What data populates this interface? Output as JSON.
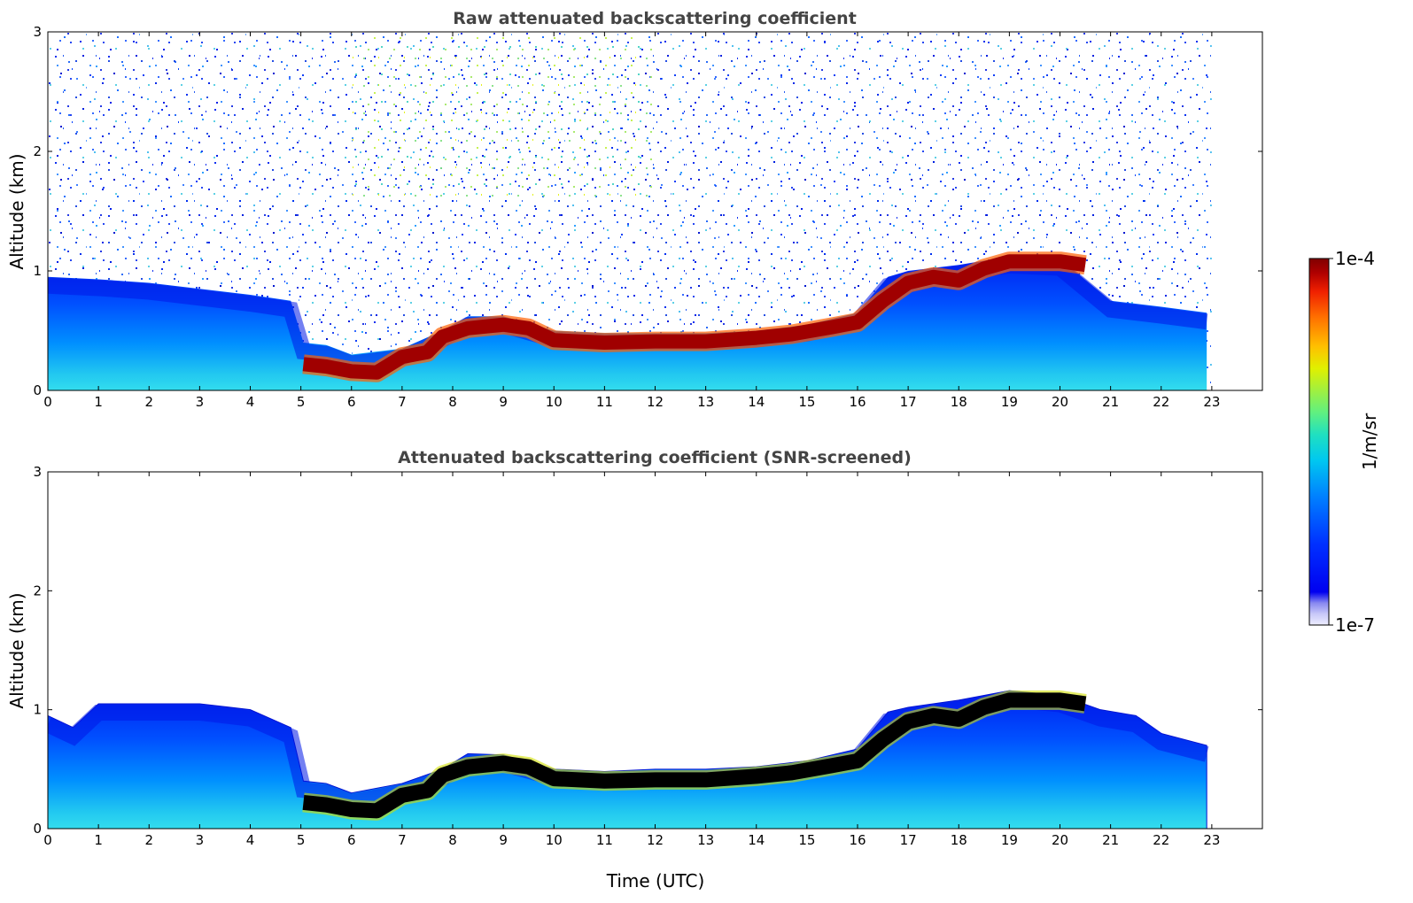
{
  "chart_data": [
    {
      "type": "heatmap",
      "title": "Raw attenuated backscattering coefficient",
      "xlabel": "",
      "ylabel": "Altitude (km)",
      "xlim": [
        0,
        24
      ],
      "ylim": [
        0,
        3
      ],
      "xticks": [
        0,
        1,
        2,
        3,
        4,
        5,
        6,
        7,
        8,
        9,
        10,
        11,
        12,
        13,
        14,
        15,
        16,
        17,
        18,
        19,
        20,
        21,
        22,
        23
      ],
      "yticks": [
        0,
        1,
        2,
        3
      ],
      "data_end_time": 23,
      "screened": false,
      "noise": "speckle throughout column; strongest above ~1 km between 6 and 12 UTC",
      "aerosol_layer_top": {
        "x": [
          0,
          1,
          2,
          3,
          4,
          4.8,
          5.05,
          5.5,
          6,
          7,
          7.8,
          8.3,
          9,
          10,
          11,
          12,
          13,
          14,
          15,
          16,
          16.6,
          17,
          18,
          19,
          20,
          21,
          22,
          22.9
        ],
        "y": [
          0.95,
          0.93,
          0.9,
          0.85,
          0.8,
          0.75,
          0.4,
          0.38,
          0.3,
          0.35,
          0.5,
          0.62,
          0.62,
          0.5,
          0.48,
          0.48,
          0.48,
          0.5,
          0.55,
          0.65,
          0.95,
          1.0,
          1.05,
          1.12,
          1.1,
          0.75,
          0.7,
          0.65
        ]
      },
      "strong_layer": {
        "x": [
          5.05,
          5.5,
          6,
          6.5,
          7,
          7.5,
          7.8,
          8.3,
          9,
          9.5,
          10,
          11,
          12,
          13,
          14,
          14.7,
          15.5,
          16,
          16.5,
          17,
          17.5,
          18,
          18.5,
          19,
          19.5,
          20,
          20.5
        ],
        "y": [
          0.22,
          0.2,
          0.16,
          0.15,
          0.28,
          0.32,
          0.45,
          0.52,
          0.55,
          0.52,
          0.42,
          0.4,
          0.41,
          0.41,
          0.44,
          0.47,
          0.53,
          0.57,
          0.75,
          0.9,
          0.95,
          0.92,
          1.02,
          1.08,
          1.08,
          1.08,
          1.05
        ],
        "value": "1e-4"
      }
    },
    {
      "type": "heatmap",
      "title": "Attenuated backscattering coefficient (SNR-screened)",
      "xlabel": "Time (UTC)",
      "ylabel": "Altitude (km)",
      "xlim": [
        0,
        24
      ],
      "ylim": [
        0,
        3
      ],
      "xticks": [
        0,
        1,
        2,
        3,
        4,
        5,
        6,
        7,
        8,
        9,
        10,
        11,
        12,
        13,
        14,
        15,
        16,
        17,
        18,
        19,
        20,
        21,
        22,
        23
      ],
      "yticks": [
        0,
        1,
        2,
        3
      ],
      "data_end_time": 23,
      "screened": true,
      "strong_layer_color": "black",
      "aerosol_layer_top": {
        "x": [
          0,
          0.5,
          1,
          2,
          3,
          4,
          4.8,
          5.05,
          5.5,
          6,
          7,
          7.8,
          8.3,
          9,
          10,
          11,
          12,
          13,
          14,
          15,
          16,
          16.6,
          17,
          18,
          19,
          20,
          20.8,
          21.5,
          22,
          22.9
        ],
        "y": [
          0.95,
          0.85,
          1.05,
          1.05,
          1.05,
          1.0,
          0.85,
          0.4,
          0.38,
          0.3,
          0.38,
          0.5,
          0.63,
          0.62,
          0.5,
          0.48,
          0.5,
          0.5,
          0.52,
          0.57,
          0.67,
          0.98,
          1.02,
          1.08,
          1.16,
          1.12,
          1.0,
          0.95,
          0.8,
          0.7
        ]
      },
      "strong_layer": {
        "x": [
          5.05,
          5.5,
          6,
          6.5,
          7,
          7.5,
          7.8,
          8.3,
          9,
          9.5,
          10,
          11,
          12,
          13,
          14,
          14.7,
          15.5,
          16,
          16.5,
          17,
          17.5,
          18,
          18.5,
          19,
          19.5,
          20,
          20.5
        ],
        "y": [
          0.22,
          0.2,
          0.16,
          0.15,
          0.28,
          0.32,
          0.45,
          0.52,
          0.55,
          0.52,
          0.42,
          0.4,
          0.41,
          0.41,
          0.44,
          0.47,
          0.53,
          0.57,
          0.75,
          0.9,
          0.95,
          0.92,
          1.02,
          1.08,
          1.08,
          1.08,
          1.05
        ],
        "value": "1e-4"
      }
    }
  ],
  "colorbar": {
    "label": "1/m/sr",
    "max_label": "1e-4",
    "min_label": "1e-7",
    "colormap": [
      "#eeeeff",
      "#c8c8f8",
      "#8888f0",
      "#0000f0",
      "#0030ff",
      "#0080ff",
      "#00c8f0",
      "#20e0c0",
      "#60f080",
      "#a0f040",
      "#e0f000",
      "#ffc000",
      "#ff7000",
      "#f02000",
      "#b00000",
      "#800000"
    ]
  }
}
